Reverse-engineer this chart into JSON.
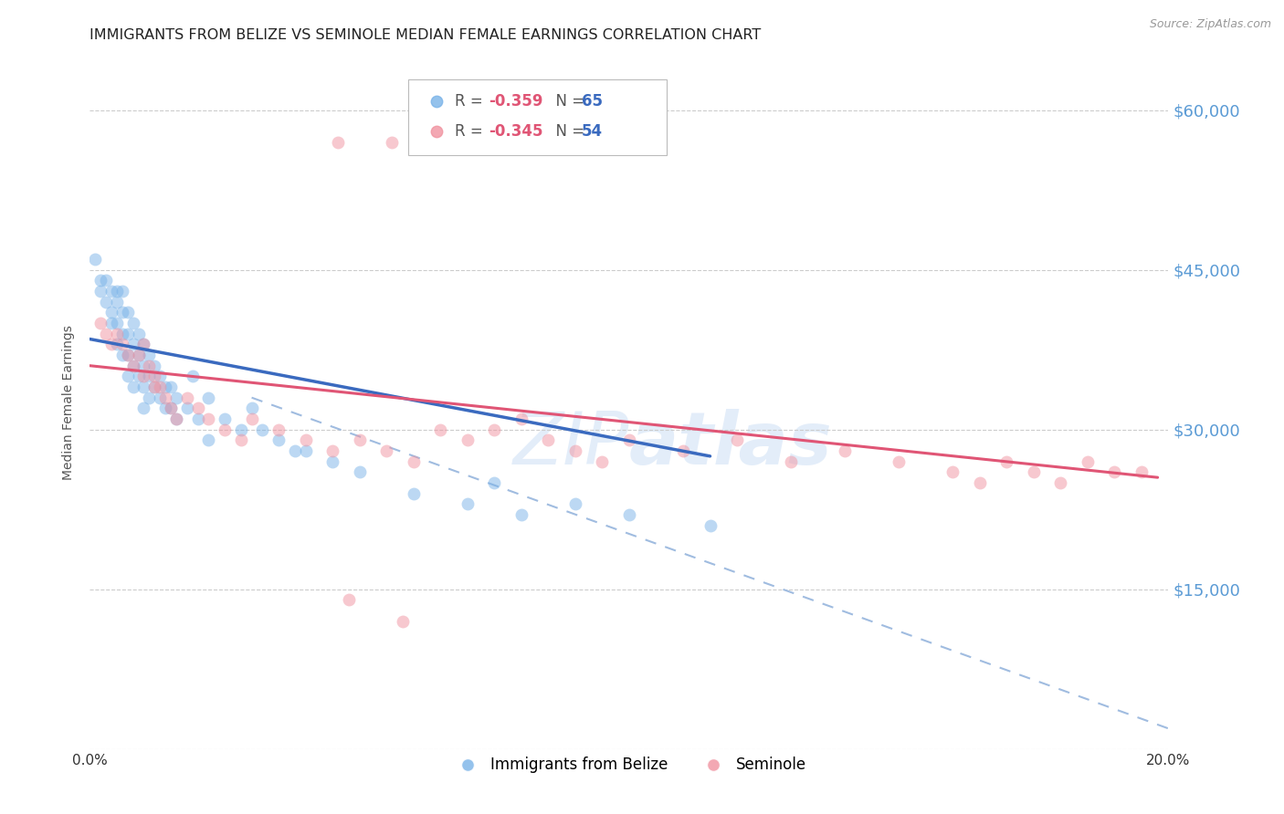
{
  "title": "IMMIGRANTS FROM BELIZE VS SEMINOLE MEDIAN FEMALE EARNINGS CORRELATION CHART",
  "source": "Source: ZipAtlas.com",
  "ylabel": "Median Female Earnings",
  "xlim": [
    0.0,
    0.2
  ],
  "ylim": [
    0,
    65000
  ],
  "xtick_values": [
    0.0,
    0.05,
    0.1,
    0.15,
    0.2
  ],
  "xtick_labels": [
    "0.0%",
    "",
    "",
    "",
    "20.0%"
  ],
  "ytick_values": [
    0,
    15000,
    30000,
    45000,
    60000
  ],
  "ytick_labels": [
    "",
    "$15,000",
    "$30,000",
    "$45,000",
    "$60,000"
  ],
  "legend1_label_r": "R = -0.359",
  "legend1_label_n": "N = 65",
  "legend2_label_r": "R = -0.345",
  "legend2_label_n": "N = 54",
  "legend1_color": "#7ab3e8",
  "legend2_color": "#f093a0",
  "watermark_zip": "ZIP",
  "watermark_atlas": "atlas",
  "blue_scatter_x": [
    0.001,
    0.002,
    0.002,
    0.003,
    0.003,
    0.004,
    0.004,
    0.004,
    0.005,
    0.005,
    0.005,
    0.005,
    0.006,
    0.006,
    0.006,
    0.006,
    0.007,
    0.007,
    0.007,
    0.007,
    0.008,
    0.008,
    0.008,
    0.008,
    0.009,
    0.009,
    0.009,
    0.01,
    0.01,
    0.01,
    0.01,
    0.011,
    0.011,
    0.011,
    0.012,
    0.012,
    0.013,
    0.013,
    0.014,
    0.014,
    0.015,
    0.015,
    0.016,
    0.016,
    0.018,
    0.019,
    0.02,
    0.022,
    0.022,
    0.025,
    0.028,
    0.03,
    0.032,
    0.035,
    0.038,
    0.04,
    0.045,
    0.05,
    0.06,
    0.07,
    0.075,
    0.08,
    0.09,
    0.1,
    0.115
  ],
  "blue_scatter_y": [
    46000,
    44000,
    43000,
    44000,
    42000,
    43000,
    41000,
    40000,
    43000,
    42000,
    40000,
    38000,
    43000,
    41000,
    39000,
    37000,
    41000,
    39000,
    37000,
    35000,
    40000,
    38000,
    36000,
    34000,
    39000,
    37000,
    35000,
    38000,
    36000,
    34000,
    32000,
    37000,
    35000,
    33000,
    36000,
    34000,
    35000,
    33000,
    34000,
    32000,
    34000,
    32000,
    33000,
    31000,
    32000,
    35000,
    31000,
    33000,
    29000,
    31000,
    30000,
    32000,
    30000,
    29000,
    28000,
    28000,
    27000,
    26000,
    24000,
    23000,
    25000,
    22000,
    23000,
    22000,
    21000
  ],
  "pink_scatter_x": [
    0.002,
    0.003,
    0.004,
    0.005,
    0.006,
    0.007,
    0.008,
    0.009,
    0.01,
    0.011,
    0.012,
    0.013,
    0.014,
    0.015,
    0.016,
    0.018,
    0.02,
    0.022,
    0.025,
    0.028,
    0.03,
    0.035,
    0.04,
    0.045,
    0.05,
    0.055,
    0.06,
    0.065,
    0.07,
    0.075,
    0.08,
    0.085,
    0.09,
    0.095,
    0.1,
    0.11,
    0.12,
    0.13,
    0.14,
    0.15,
    0.16,
    0.165,
    0.17,
    0.175,
    0.18,
    0.185,
    0.19,
    0.195,
    0.01,
    0.012,
    0.046,
    0.056,
    0.048,
    0.058
  ],
  "pink_scatter_y": [
    40000,
    39000,
    38000,
    39000,
    38000,
    37000,
    36000,
    37000,
    38000,
    36000,
    35000,
    34000,
    33000,
    32000,
    31000,
    33000,
    32000,
    31000,
    30000,
    29000,
    31000,
    30000,
    29000,
    28000,
    29000,
    28000,
    27000,
    30000,
    29000,
    30000,
    31000,
    29000,
    28000,
    27000,
    29000,
    28000,
    29000,
    27000,
    28000,
    27000,
    26000,
    25000,
    27000,
    26000,
    25000,
    27000,
    26000,
    26000,
    35000,
    34000,
    57000,
    57000,
    14000,
    12000
  ],
  "blue_line_x": [
    0.0,
    0.115
  ],
  "blue_line_y": [
    38500,
    27500
  ],
  "pink_line_x": [
    0.0,
    0.198
  ],
  "pink_line_y": [
    36000,
    25500
  ],
  "dashed_line_x": [
    0.03,
    0.205
  ],
  "dashed_line_y": [
    33000,
    1000
  ],
  "background_color": "#ffffff",
  "grid_color": "#cccccc",
  "ytick_color": "#5b9bd5",
  "scatter_alpha": 0.5,
  "scatter_size": 100,
  "title_fontsize": 11.5,
  "axis_label_fontsize": 10,
  "tick_fontsize": 11
}
